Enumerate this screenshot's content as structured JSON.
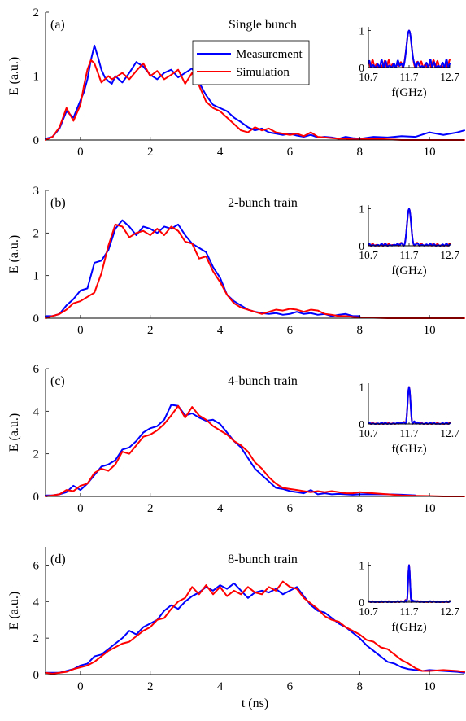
{
  "chart_data": [
    {
      "type": "line",
      "panel_label": "(a)",
      "title": "Single bunch",
      "xlabel": "",
      "ylabel": "E (a.u.)",
      "xlim": [
        -1,
        11
      ],
      "ylim": [
        0,
        2
      ],
      "xticks": [
        0,
        2,
        4,
        6,
        8,
        10
      ],
      "yticks": [
        0,
        1,
        2
      ],
      "legend": {
        "placement": "top-center-right",
        "entries": [
          "Measurement",
          "Simulation"
        ]
      },
      "series": [
        {
          "name": "Measurement",
          "color": "#0000ff",
          "x": [
            -1.0,
            -0.8,
            -0.6,
            -0.4,
            -0.2,
            0.0,
            0.1,
            0.2,
            0.3,
            0.4,
            0.5,
            0.6,
            0.7,
            0.8,
            0.9,
            1.0,
            1.2,
            1.4,
            1.6,
            1.8,
            2.0,
            2.2,
            2.4,
            2.6,
            2.8,
            3.0,
            3.2,
            3.4,
            3.6,
            3.8,
            4.0,
            4.2,
            4.4,
            4.6,
            4.8,
            5.0,
            5.2,
            5.4,
            5.6,
            5.8,
            6.0,
            6.2,
            6.4,
            6.6,
            6.8,
            7.0,
            7.2,
            7.4,
            7.6,
            7.8,
            8.0,
            8.4,
            8.8,
            9.2,
            9.6,
            10.0,
            10.4,
            10.8,
            11.0
          ],
          "y": [
            0.02,
            0.05,
            0.18,
            0.45,
            0.35,
            0.62,
            0.75,
            0.95,
            1.25,
            1.48,
            1.3,
            1.1,
            0.98,
            0.92,
            0.88,
            1.0,
            0.9,
            1.05,
            1.22,
            1.15,
            1.02,
            0.95,
            1.05,
            1.1,
            0.98,
            1.05,
            1.12,
            0.9,
            0.7,
            0.55,
            0.5,
            0.45,
            0.35,
            0.28,
            0.2,
            0.15,
            0.18,
            0.12,
            0.1,
            0.08,
            0.1,
            0.07,
            0.05,
            0.08,
            0.04,
            0.05,
            0.04,
            0.02,
            0.05,
            0.03,
            0.02,
            0.05,
            0.04,
            0.06,
            0.05,
            0.12,
            0.08,
            0.12,
            0.15
          ]
        },
        {
          "name": "Simulation",
          "color": "#ff0000",
          "x": [
            -1.0,
            -0.8,
            -0.6,
            -0.4,
            -0.2,
            0.0,
            0.1,
            0.2,
            0.3,
            0.4,
            0.5,
            0.6,
            0.7,
            0.8,
            0.9,
            1.0,
            1.2,
            1.4,
            1.6,
            1.8,
            2.0,
            2.2,
            2.4,
            2.6,
            2.8,
            3.0,
            3.2,
            3.4,
            3.6,
            3.8,
            4.0,
            4.2,
            4.4,
            4.6,
            4.8,
            5.0,
            5.2,
            5.4,
            5.6,
            5.8,
            6.0,
            6.2,
            6.4,
            6.6,
            6.8,
            7.0,
            7.2,
            7.4,
            7.6,
            7.8,
            8.0,
            8.4,
            8.8,
            9.2,
            9.6,
            10.0,
            10.4,
            10.8,
            11.0
          ],
          "y": [
            0.0,
            0.05,
            0.2,
            0.5,
            0.3,
            0.55,
            0.85,
            1.1,
            1.25,
            1.2,
            1.05,
            0.9,
            0.95,
            1.0,
            0.95,
            0.98,
            1.05,
            0.95,
            1.08,
            1.2,
            1.0,
            1.08,
            0.95,
            1.02,
            1.1,
            0.88,
            1.05,
            0.85,
            0.6,
            0.5,
            0.45,
            0.35,
            0.25,
            0.15,
            0.12,
            0.2,
            0.15,
            0.18,
            0.12,
            0.1,
            0.08,
            0.1,
            0.06,
            0.12,
            0.05,
            0.04,
            0.03,
            0.02,
            0.02,
            0.01,
            0.01,
            0.02,
            0.01,
            0.0,
            0.0,
            0.0,
            0.0,
            0.0,
            0.0
          ]
        }
      ],
      "inset": {
        "xlabel": "f(GHz)",
        "xlim": [
          10.7,
          12.7
        ],
        "ylim": [
          0,
          1.1
        ],
        "xticks": [
          10.7,
          11.7,
          12.7
        ],
        "yticks": [
          0,
          1
        ],
        "peak_width": 0.16,
        "sidelobe_level": 0.22
      }
    },
    {
      "type": "line",
      "panel_label": "(b)",
      "title": "2-bunch train",
      "xlabel": "",
      "ylabel": "E (a.u.)",
      "xlim": [
        -1,
        11
      ],
      "ylim": [
        0,
        3
      ],
      "xticks": [
        0,
        2,
        4,
        6,
        8,
        10
      ],
      "yticks": [
        0,
        1,
        2,
        3
      ],
      "series": [
        {
          "name": "Measurement",
          "color": "#0000ff",
          "x": [
            -1.0,
            -0.8,
            -0.6,
            -0.4,
            -0.2,
            0.0,
            0.2,
            0.4,
            0.6,
            0.8,
            1.0,
            1.2,
            1.4,
            1.6,
            1.8,
            2.0,
            2.2,
            2.4,
            2.6,
            2.8,
            3.0,
            3.2,
            3.4,
            3.6,
            3.8,
            4.0,
            4.2,
            4.4,
            4.6,
            4.8,
            5.0,
            5.2,
            5.4,
            5.6,
            5.8,
            6.0,
            6.2,
            6.4,
            6.6,
            6.8,
            7.0,
            7.2,
            7.4,
            7.6,
            7.8,
            8.0
          ],
          "y": [
            0.05,
            0.05,
            0.1,
            0.3,
            0.45,
            0.65,
            0.7,
            1.3,
            1.35,
            1.6,
            2.1,
            2.3,
            2.15,
            1.95,
            2.15,
            2.1,
            2.0,
            2.15,
            2.1,
            2.2,
            1.95,
            1.75,
            1.65,
            1.55,
            1.2,
            0.95,
            0.55,
            0.4,
            0.3,
            0.2,
            0.15,
            0.12,
            0.1,
            0.12,
            0.08,
            0.1,
            0.15,
            0.1,
            0.12,
            0.08,
            0.1,
            0.05,
            0.08,
            0.1,
            0.05,
            0.05
          ]
        },
        {
          "name": "Simulation",
          "color": "#ff0000",
          "x": [
            -1.0,
            -0.8,
            -0.6,
            -0.4,
            -0.2,
            0.0,
            0.2,
            0.4,
            0.6,
            0.8,
            1.0,
            1.2,
            1.4,
            1.6,
            1.8,
            2.0,
            2.2,
            2.4,
            2.6,
            2.8,
            3.0,
            3.2,
            3.4,
            3.6,
            3.8,
            4.0,
            4.2,
            4.4,
            4.6,
            4.8,
            5.0,
            5.2,
            5.4,
            5.6,
            5.8,
            6.0,
            6.2,
            6.4,
            6.6,
            6.8,
            7.0,
            7.2,
            7.4,
            7.6,
            7.8,
            8.0,
            8.2,
            8.4,
            8.8,
            9.2,
            9.6,
            10.0,
            10.4,
            10.8,
            11.0
          ],
          "y": [
            0.0,
            0.05,
            0.1,
            0.2,
            0.35,
            0.4,
            0.5,
            0.6,
            1.05,
            1.7,
            2.2,
            2.15,
            1.9,
            2.0,
            2.05,
            1.95,
            2.1,
            1.95,
            2.15,
            2.05,
            1.8,
            1.75,
            1.4,
            1.45,
            1.1,
            0.85,
            0.55,
            0.35,
            0.25,
            0.2,
            0.15,
            0.1,
            0.15,
            0.2,
            0.18,
            0.22,
            0.2,
            0.15,
            0.2,
            0.18,
            0.1,
            0.08,
            0.05,
            0.05,
            0.03,
            0.02,
            0.01,
            0.01,
            0.0,
            0.0,
            0.0,
            0.0,
            0.0,
            0.0,
            0.0
          ]
        }
      ],
      "inset": {
        "xlabel": "f(GHz)",
        "xlim": [
          10.7,
          12.7
        ],
        "ylim": [
          0,
          1.1
        ],
        "xticks": [
          10.7,
          11.7,
          12.7
        ],
        "yticks": [
          0,
          1
        ],
        "peak_width": 0.13,
        "sidelobe_level": 0.06
      }
    },
    {
      "type": "line",
      "panel_label": "(c)",
      "title": "4-bunch train",
      "xlabel": "",
      "ylabel": "E (a.u.)",
      "xlim": [
        -1,
        11
      ],
      "ylim": [
        0,
        6
      ],
      "xticks": [
        0,
        2,
        4,
        6,
        8,
        10
      ],
      "yticks": [
        0,
        2,
        4,
        6
      ],
      "series": [
        {
          "name": "Measurement",
          "color": "#0000ff",
          "x": [
            -1.0,
            -0.8,
            -0.6,
            -0.4,
            -0.2,
            0.0,
            0.2,
            0.4,
            0.6,
            0.8,
            1.0,
            1.2,
            1.4,
            1.6,
            1.8,
            2.0,
            2.2,
            2.4,
            2.6,
            2.8,
            3.0,
            3.2,
            3.4,
            3.6,
            3.8,
            4.0,
            4.2,
            4.4,
            4.6,
            4.8,
            5.0,
            5.2,
            5.4,
            5.6,
            5.8,
            6.0,
            6.2,
            6.4,
            6.6,
            6.8,
            7.0,
            7.2,
            7.4,
            7.6,
            7.8,
            8.0,
            8.4,
            8.8,
            9.2,
            9.6
          ],
          "y": [
            0.05,
            0.05,
            0.1,
            0.2,
            0.5,
            0.3,
            0.6,
            1.0,
            1.4,
            1.5,
            1.7,
            2.2,
            2.3,
            2.6,
            3.0,
            3.2,
            3.3,
            3.6,
            4.3,
            4.25,
            3.8,
            3.9,
            3.7,
            3.55,
            3.6,
            3.4,
            3.0,
            2.6,
            2.3,
            1.8,
            1.3,
            1.0,
            0.7,
            0.4,
            0.35,
            0.25,
            0.2,
            0.15,
            0.3,
            0.1,
            0.15,
            0.1,
            0.12,
            0.1,
            0.08,
            0.1,
            0.1,
            0.1,
            0.08,
            0.05
          ]
        },
        {
          "name": "Simulation",
          "color": "#ff0000",
          "x": [
            -1.0,
            -0.8,
            -0.6,
            -0.4,
            -0.2,
            0.0,
            0.2,
            0.4,
            0.6,
            0.8,
            1.0,
            1.2,
            1.4,
            1.6,
            1.8,
            2.0,
            2.2,
            2.4,
            2.6,
            2.8,
            3.0,
            3.2,
            3.4,
            3.6,
            3.8,
            4.0,
            4.2,
            4.4,
            4.6,
            4.8,
            5.0,
            5.2,
            5.4,
            5.6,
            5.8,
            6.0,
            6.2,
            6.4,
            6.6,
            6.8,
            7.0,
            7.2,
            7.4,
            7.6,
            7.8,
            8.0,
            8.4,
            8.8,
            9.2,
            9.6,
            10.0,
            10.4,
            10.8,
            11.0
          ],
          "y": [
            0.0,
            0.05,
            0.1,
            0.3,
            0.25,
            0.5,
            0.6,
            1.1,
            1.3,
            1.2,
            1.5,
            2.1,
            2.0,
            2.4,
            2.8,
            2.9,
            3.1,
            3.4,
            3.8,
            4.25,
            3.7,
            4.2,
            3.8,
            3.6,
            3.3,
            3.1,
            2.9,
            2.6,
            2.4,
            2.1,
            1.6,
            1.3,
            0.9,
            0.6,
            0.4,
            0.35,
            0.3,
            0.25,
            0.2,
            0.25,
            0.2,
            0.25,
            0.2,
            0.15,
            0.15,
            0.2,
            0.15,
            0.1,
            0.05,
            0.03,
            0.02,
            0.0,
            0.0,
            0.0
          ]
        }
      ],
      "inset": {
        "xlabel": "f(GHz)",
        "xlim": [
          10.7,
          12.7
        ],
        "ylim": [
          0,
          1.1
        ],
        "xticks": [
          10.7,
          11.7,
          12.7
        ],
        "yticks": [
          0,
          1
        ],
        "peak_width": 0.09,
        "sidelobe_level": 0.04
      }
    },
    {
      "type": "line",
      "panel_label": "(d)",
      "title": "8-bunch train",
      "xlabel": "t (ns)",
      "ylabel": "E (a.u.)",
      "xlim": [
        -1,
        11
      ],
      "ylim": [
        0,
        7
      ],
      "xticks": [
        0,
        2,
        4,
        6,
        8,
        10
      ],
      "yticks": [
        0,
        2,
        4,
        6
      ],
      "series": [
        {
          "name": "Measurement",
          "color": "#0000ff",
          "x": [
            -1.0,
            -0.8,
            -0.6,
            -0.4,
            -0.2,
            0.0,
            0.2,
            0.4,
            0.6,
            0.8,
            1.0,
            1.2,
            1.4,
            1.6,
            1.8,
            2.0,
            2.2,
            2.4,
            2.6,
            2.8,
            3.0,
            3.2,
            3.4,
            3.6,
            3.8,
            4.0,
            4.2,
            4.4,
            4.6,
            4.8,
            5.0,
            5.2,
            5.4,
            5.6,
            5.8,
            6.0,
            6.2,
            6.4,
            6.6,
            6.8,
            7.0,
            7.2,
            7.4,
            7.6,
            7.8,
            8.0,
            8.2,
            8.4,
            8.6,
            8.8,
            9.0,
            9.2,
            9.4,
            9.6,
            9.8,
            10.0,
            10.4,
            10.8,
            11.0
          ],
          "y": [
            0.1,
            0.1,
            0.1,
            0.2,
            0.3,
            0.5,
            0.6,
            1.0,
            1.1,
            1.4,
            1.7,
            2.0,
            2.4,
            2.2,
            2.6,
            2.8,
            3.0,
            3.5,
            3.8,
            3.6,
            4.0,
            4.3,
            4.5,
            4.8,
            4.6,
            4.9,
            4.7,
            5.0,
            4.6,
            4.2,
            4.5,
            4.6,
            4.5,
            4.7,
            4.4,
            4.6,
            4.8,
            4.3,
            3.8,
            3.5,
            3.4,
            3.1,
            2.8,
            2.6,
            2.3,
            2.0,
            1.6,
            1.3,
            1.0,
            0.7,
            0.6,
            0.4,
            0.3,
            0.25,
            0.2,
            0.25,
            0.2,
            0.15,
            0.1
          ]
        },
        {
          "name": "Simulation",
          "color": "#ff0000",
          "x": [
            -1.0,
            -0.8,
            -0.6,
            -0.4,
            -0.2,
            0.0,
            0.2,
            0.4,
            0.6,
            0.8,
            1.0,
            1.2,
            1.4,
            1.6,
            1.8,
            2.0,
            2.2,
            2.4,
            2.6,
            2.8,
            3.0,
            3.2,
            3.4,
            3.6,
            3.8,
            4.0,
            4.2,
            4.4,
            4.6,
            4.8,
            5.0,
            5.2,
            5.4,
            5.6,
            5.8,
            6.0,
            6.2,
            6.4,
            6.6,
            6.8,
            7.0,
            7.2,
            7.4,
            7.6,
            7.8,
            8.0,
            8.2,
            8.4,
            8.6,
            8.8,
            9.0,
            9.2,
            9.4,
            9.6,
            9.8,
            10.0,
            10.4,
            10.8,
            11.0
          ],
          "y": [
            0.1,
            0.05,
            0.1,
            0.15,
            0.3,
            0.4,
            0.5,
            0.7,
            1.0,
            1.3,
            1.5,
            1.7,
            1.8,
            2.1,
            2.4,
            2.6,
            3.0,
            3.1,
            3.6,
            4.0,
            4.2,
            4.8,
            4.4,
            4.9,
            4.4,
            4.8,
            4.3,
            4.6,
            4.4,
            4.8,
            4.5,
            4.4,
            4.8,
            4.6,
            5.1,
            4.8,
            4.7,
            4.2,
            3.9,
            3.6,
            3.2,
            3.0,
            2.9,
            2.6,
            2.4,
            2.2,
            1.9,
            1.8,
            1.5,
            1.4,
            1.1,
            0.8,
            0.6,
            0.35,
            0.2,
            0.2,
            0.25,
            0.2,
            0.15
          ]
        }
      ],
      "inset": {
        "xlabel": "f(GHz)",
        "xlim": [
          10.7,
          12.7
        ],
        "ylim": [
          0,
          1.1
        ],
        "xticks": [
          10.7,
          11.7,
          12.7
        ],
        "yticks": [
          0,
          1
        ],
        "peak_width": 0.06,
        "sidelobe_level": 0.03
      }
    }
  ]
}
